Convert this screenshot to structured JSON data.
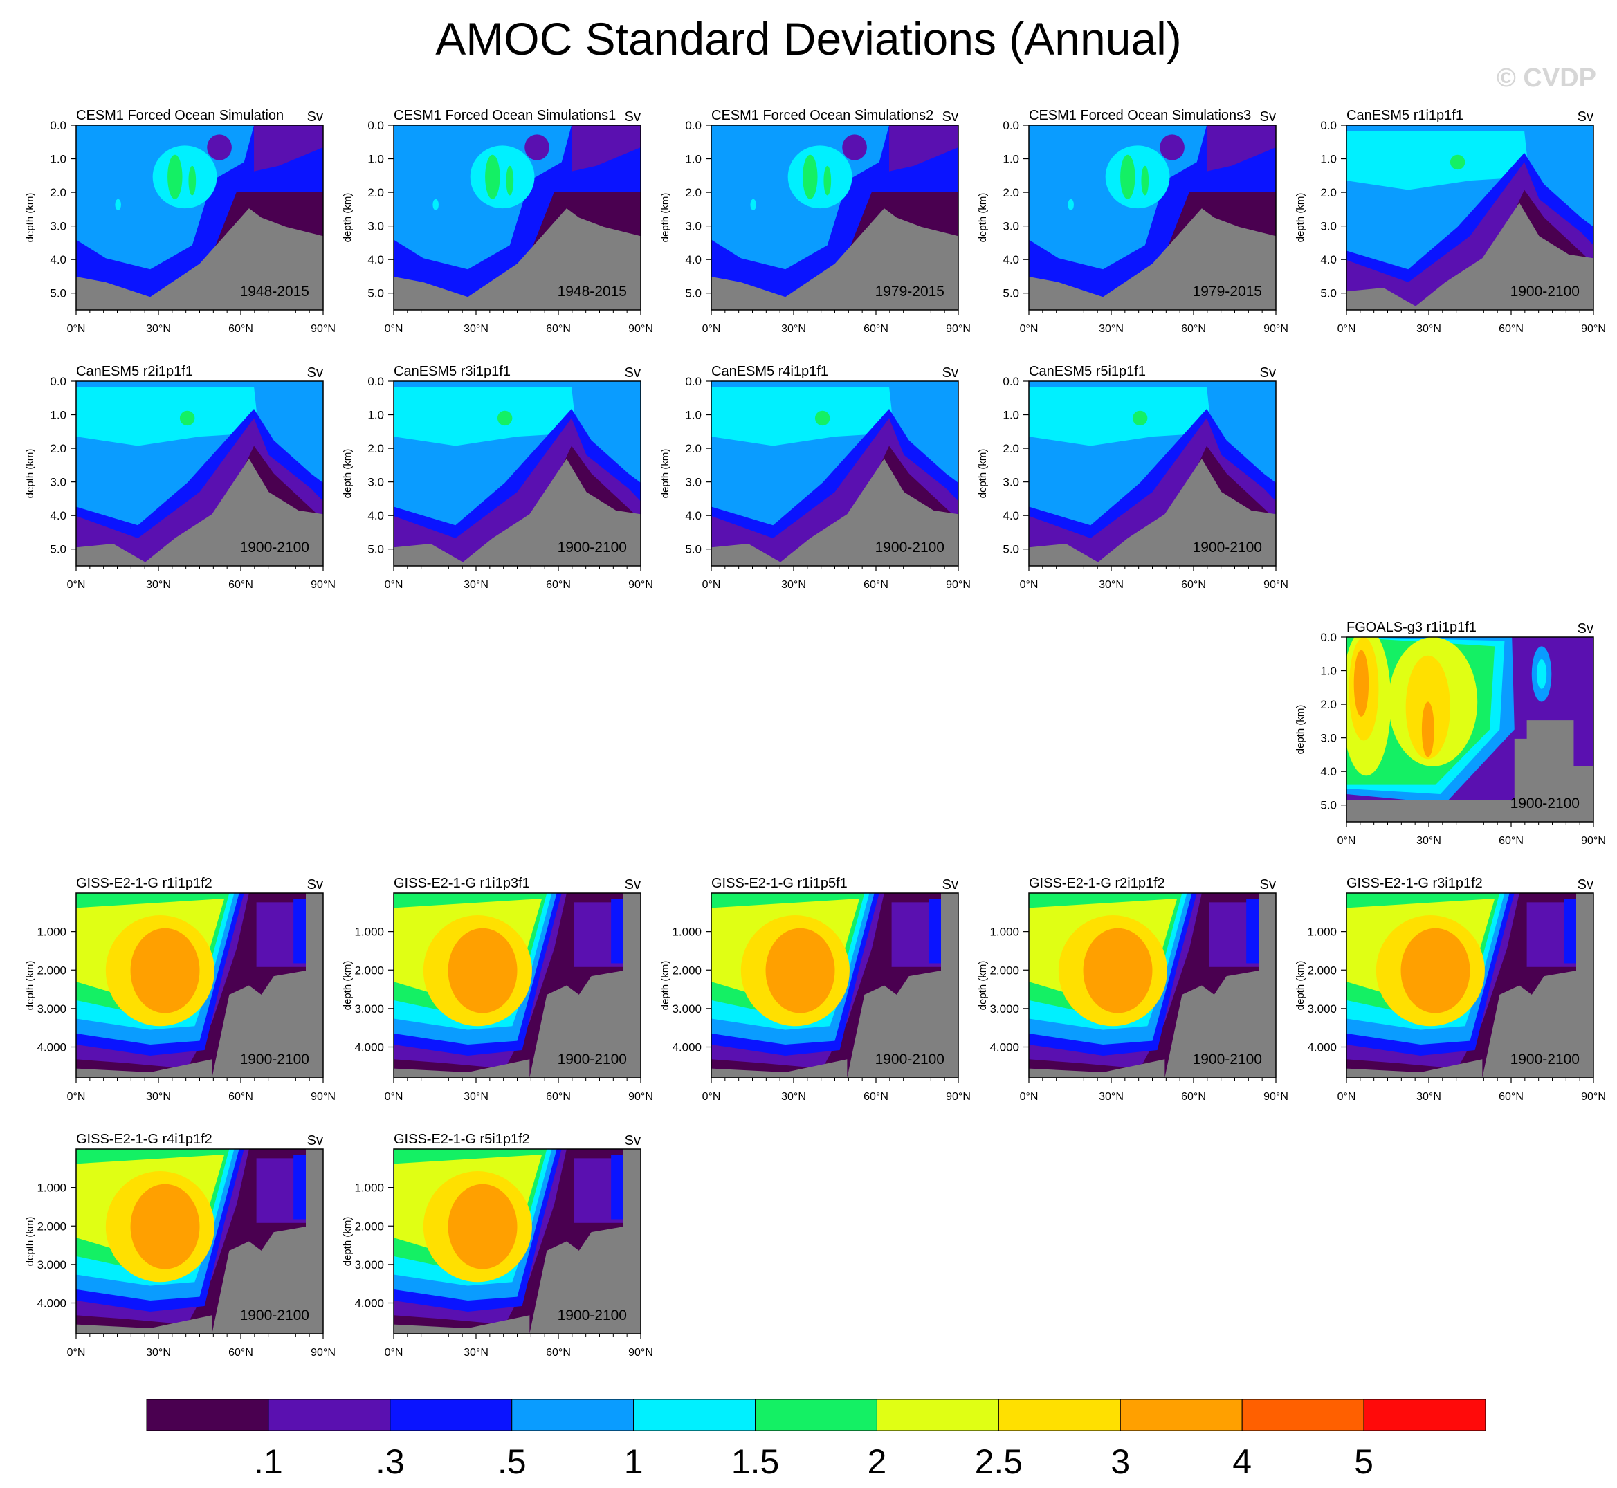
{
  "title": "AMOC Standard Deviations (Annual)",
  "watermark": "© CVDP",
  "colors": {
    "levels": [
      "#4a0050",
      "#5a10b0",
      "#0a14ff",
      "#0a9cff",
      "#00f0ff",
      "#14f064",
      "#e0ff14",
      "#ffe000",
      "#ffa000",
      "#ff6000",
      "#ff0a0a"
    ],
    "land": "#808080"
  },
  "colorbar": {
    "labels": [
      ".1",
      ".3",
      ".5",
      "1",
      "1.5",
      "2",
      "2.5",
      "3",
      "4",
      "5"
    ]
  },
  "chart_data": [
    {
      "type": "contour",
      "title": "CESM1 Forced Ocean Simulation",
      "units": "Sv",
      "period": "1948-2015",
      "ylabel": "depth (km)",
      "yticks": [
        "0.0",
        "1.0",
        "2.0",
        "3.0",
        "4.0",
        "5.0"
      ],
      "xticks": [
        "0°N",
        "30°N",
        "60°N",
        "90°N"
      ],
      "xlim": [
        0,
        90
      ],
      "ylim": [
        0,
        5.5
      ],
      "pattern": "cesm"
    },
    {
      "type": "contour",
      "title": "CESM1 Forced Ocean Simulations1",
      "units": "Sv",
      "period": "1948-2015",
      "ylabel": "depth (km)",
      "yticks": [
        "0.0",
        "1.0",
        "2.0",
        "3.0",
        "4.0",
        "5.0"
      ],
      "xticks": [
        "0°N",
        "30°N",
        "60°N",
        "90°N"
      ],
      "xlim": [
        0,
        90
      ],
      "ylim": [
        0,
        5.5
      ],
      "pattern": "cesm"
    },
    {
      "type": "contour",
      "title": "CESM1 Forced Ocean Simulations2",
      "units": "Sv",
      "period": "1979-2015",
      "ylabel": "depth (km)",
      "yticks": [
        "0.0",
        "1.0",
        "2.0",
        "3.0",
        "4.0",
        "5.0"
      ],
      "xticks": [
        "0°N",
        "30°N",
        "60°N",
        "90°N"
      ],
      "xlim": [
        0,
        90
      ],
      "ylim": [
        0,
        5.5
      ],
      "pattern": "cesm"
    },
    {
      "type": "contour",
      "title": "CESM1 Forced Ocean Simulations3",
      "units": "Sv",
      "period": "1979-2015",
      "ylabel": "depth (km)",
      "yticks": [
        "0.0",
        "1.0",
        "2.0",
        "3.0",
        "4.0",
        "5.0"
      ],
      "xticks": [
        "0°N",
        "30°N",
        "60°N",
        "90°N"
      ],
      "xlim": [
        0,
        90
      ],
      "ylim": [
        0,
        5.5
      ],
      "pattern": "cesm"
    },
    {
      "type": "contour",
      "title": "CanESM5 r1i1p1f1",
      "units": "Sv",
      "period": "1900-2100",
      "ylabel": "depth (km)",
      "yticks": [
        "0.0",
        "1.0",
        "2.0",
        "3.0",
        "4.0",
        "5.0"
      ],
      "xticks": [
        "0°N",
        "30°N",
        "60°N",
        "90°N"
      ],
      "xlim": [
        0,
        90
      ],
      "ylim": [
        0,
        5.5
      ],
      "pattern": "canesm"
    },
    {
      "type": "contour",
      "title": "CanESM5 r2i1p1f1",
      "units": "Sv",
      "period": "1900-2100",
      "ylabel": "depth (km)",
      "yticks": [
        "0.0",
        "1.0",
        "2.0",
        "3.0",
        "4.0",
        "5.0"
      ],
      "xticks": [
        "0°N",
        "30°N",
        "60°N",
        "90°N"
      ],
      "xlim": [
        0,
        90
      ],
      "ylim": [
        0,
        5.5
      ],
      "pattern": "canesm"
    },
    {
      "type": "contour",
      "title": "CanESM5 r3i1p1f1",
      "units": "Sv",
      "period": "1900-2100",
      "ylabel": "depth (km)",
      "yticks": [
        "0.0",
        "1.0",
        "2.0",
        "3.0",
        "4.0",
        "5.0"
      ],
      "xticks": [
        "0°N",
        "30°N",
        "60°N",
        "90°N"
      ],
      "xlim": [
        0,
        90
      ],
      "ylim": [
        0,
        5.5
      ],
      "pattern": "canesm"
    },
    {
      "type": "contour",
      "title": "CanESM5 r4i1p1f1",
      "units": "Sv",
      "period": "1900-2100",
      "ylabel": "depth (km)",
      "yticks": [
        "0.0",
        "1.0",
        "2.0",
        "3.0",
        "4.0",
        "5.0"
      ],
      "xticks": [
        "0°N",
        "30°N",
        "60°N",
        "90°N"
      ],
      "xlim": [
        0,
        90
      ],
      "ylim": [
        0,
        5.5
      ],
      "pattern": "canesm"
    },
    {
      "type": "contour",
      "title": "CanESM5 r5i1p1f1",
      "units": "Sv",
      "period": "1900-2100",
      "ylabel": "depth (km)",
      "yticks": [
        "0.0",
        "1.0",
        "2.0",
        "3.0",
        "4.0",
        "5.0"
      ],
      "xticks": [
        "0°N",
        "30°N",
        "60°N",
        "90°N"
      ],
      "xlim": [
        0,
        90
      ],
      "ylim": [
        0,
        5.5
      ],
      "pattern": "canesm"
    },
    {
      "type": "contour",
      "title": "FGOALS-g3 r1i1p1f1",
      "units": "Sv",
      "period": "1900-2100",
      "ylabel": "depth (km)",
      "yticks": [
        "0.0",
        "1.0",
        "2.0",
        "3.0",
        "4.0",
        "5.0"
      ],
      "xticks": [
        "0°N",
        "30°N",
        "60°N",
        "90°N"
      ],
      "xlim": [
        0,
        90
      ],
      "ylim": [
        0,
        5.5
      ],
      "pattern": "fgoals"
    },
    {
      "type": "contour",
      "title": "GISS-E2-1-G r1i1p1f2",
      "units": "Sv",
      "period": "1900-2100",
      "ylabel": "depth (km)",
      "yticks": [
        "1.000",
        "2.000",
        "3.000",
        "4.000"
      ],
      "xticks": [
        "0°N",
        "30°N",
        "60°N",
        "90°N"
      ],
      "xlim": [
        0,
        90
      ],
      "ylim": [
        0,
        4.8
      ],
      "pattern": "giss"
    },
    {
      "type": "contour",
      "title": "GISS-E2-1-G r1i1p3f1",
      "units": "Sv",
      "period": "1900-2100",
      "ylabel": "depth (km)",
      "yticks": [
        "1.000",
        "2.000",
        "3.000",
        "4.000"
      ],
      "xticks": [
        "0°N",
        "30°N",
        "60°N",
        "90°N"
      ],
      "xlim": [
        0,
        90
      ],
      "ylim": [
        0,
        4.8
      ],
      "pattern": "giss"
    },
    {
      "type": "contour",
      "title": "GISS-E2-1-G r1i1p5f1",
      "units": "Sv",
      "period": "1900-2100",
      "ylabel": "depth (km)",
      "yticks": [
        "1.000",
        "2.000",
        "3.000",
        "4.000"
      ],
      "xticks": [
        "0°N",
        "30°N",
        "60°N",
        "90°N"
      ],
      "xlim": [
        0,
        90
      ],
      "ylim": [
        0,
        4.8
      ],
      "pattern": "giss"
    },
    {
      "type": "contour",
      "title": "GISS-E2-1-G r2i1p1f2",
      "units": "Sv",
      "period": "1900-2100",
      "ylabel": "depth (km)",
      "yticks": [
        "1.000",
        "2.000",
        "3.000",
        "4.000"
      ],
      "xticks": [
        "0°N",
        "30°N",
        "60°N",
        "90°N"
      ],
      "xlim": [
        0,
        90
      ],
      "ylim": [
        0,
        4.8
      ],
      "pattern": "giss"
    },
    {
      "type": "contour",
      "title": "GISS-E2-1-G r3i1p1f2",
      "units": "Sv",
      "period": "1900-2100",
      "ylabel": "depth (km)",
      "yticks": [
        "1.000",
        "2.000",
        "3.000",
        "4.000"
      ],
      "xticks": [
        "0°N",
        "30°N",
        "60°N",
        "90°N"
      ],
      "xlim": [
        0,
        90
      ],
      "ylim": [
        0,
        4.8
      ],
      "pattern": "giss"
    },
    {
      "type": "contour",
      "title": "GISS-E2-1-G r4i1p1f2",
      "units": "Sv",
      "period": "1900-2100",
      "ylabel": "depth (km)",
      "yticks": [
        "1.000",
        "2.000",
        "3.000",
        "4.000"
      ],
      "xticks": [
        "0°N",
        "30°N",
        "60°N",
        "90°N"
      ],
      "xlim": [
        0,
        90
      ],
      "ylim": [
        0,
        4.8
      ],
      "pattern": "giss"
    },
    {
      "type": "contour",
      "title": "GISS-E2-1-G r5i1p1f2",
      "units": "Sv",
      "period": "1900-2100",
      "ylabel": "depth (km)",
      "yticks": [
        "1.000",
        "2.000",
        "3.000",
        "4.000"
      ],
      "xticks": [
        "0°N",
        "30°N",
        "60°N",
        "90°N"
      ],
      "xlim": [
        0,
        90
      ],
      "ylim": [
        0,
        4.8
      ],
      "pattern": "giss"
    }
  ]
}
